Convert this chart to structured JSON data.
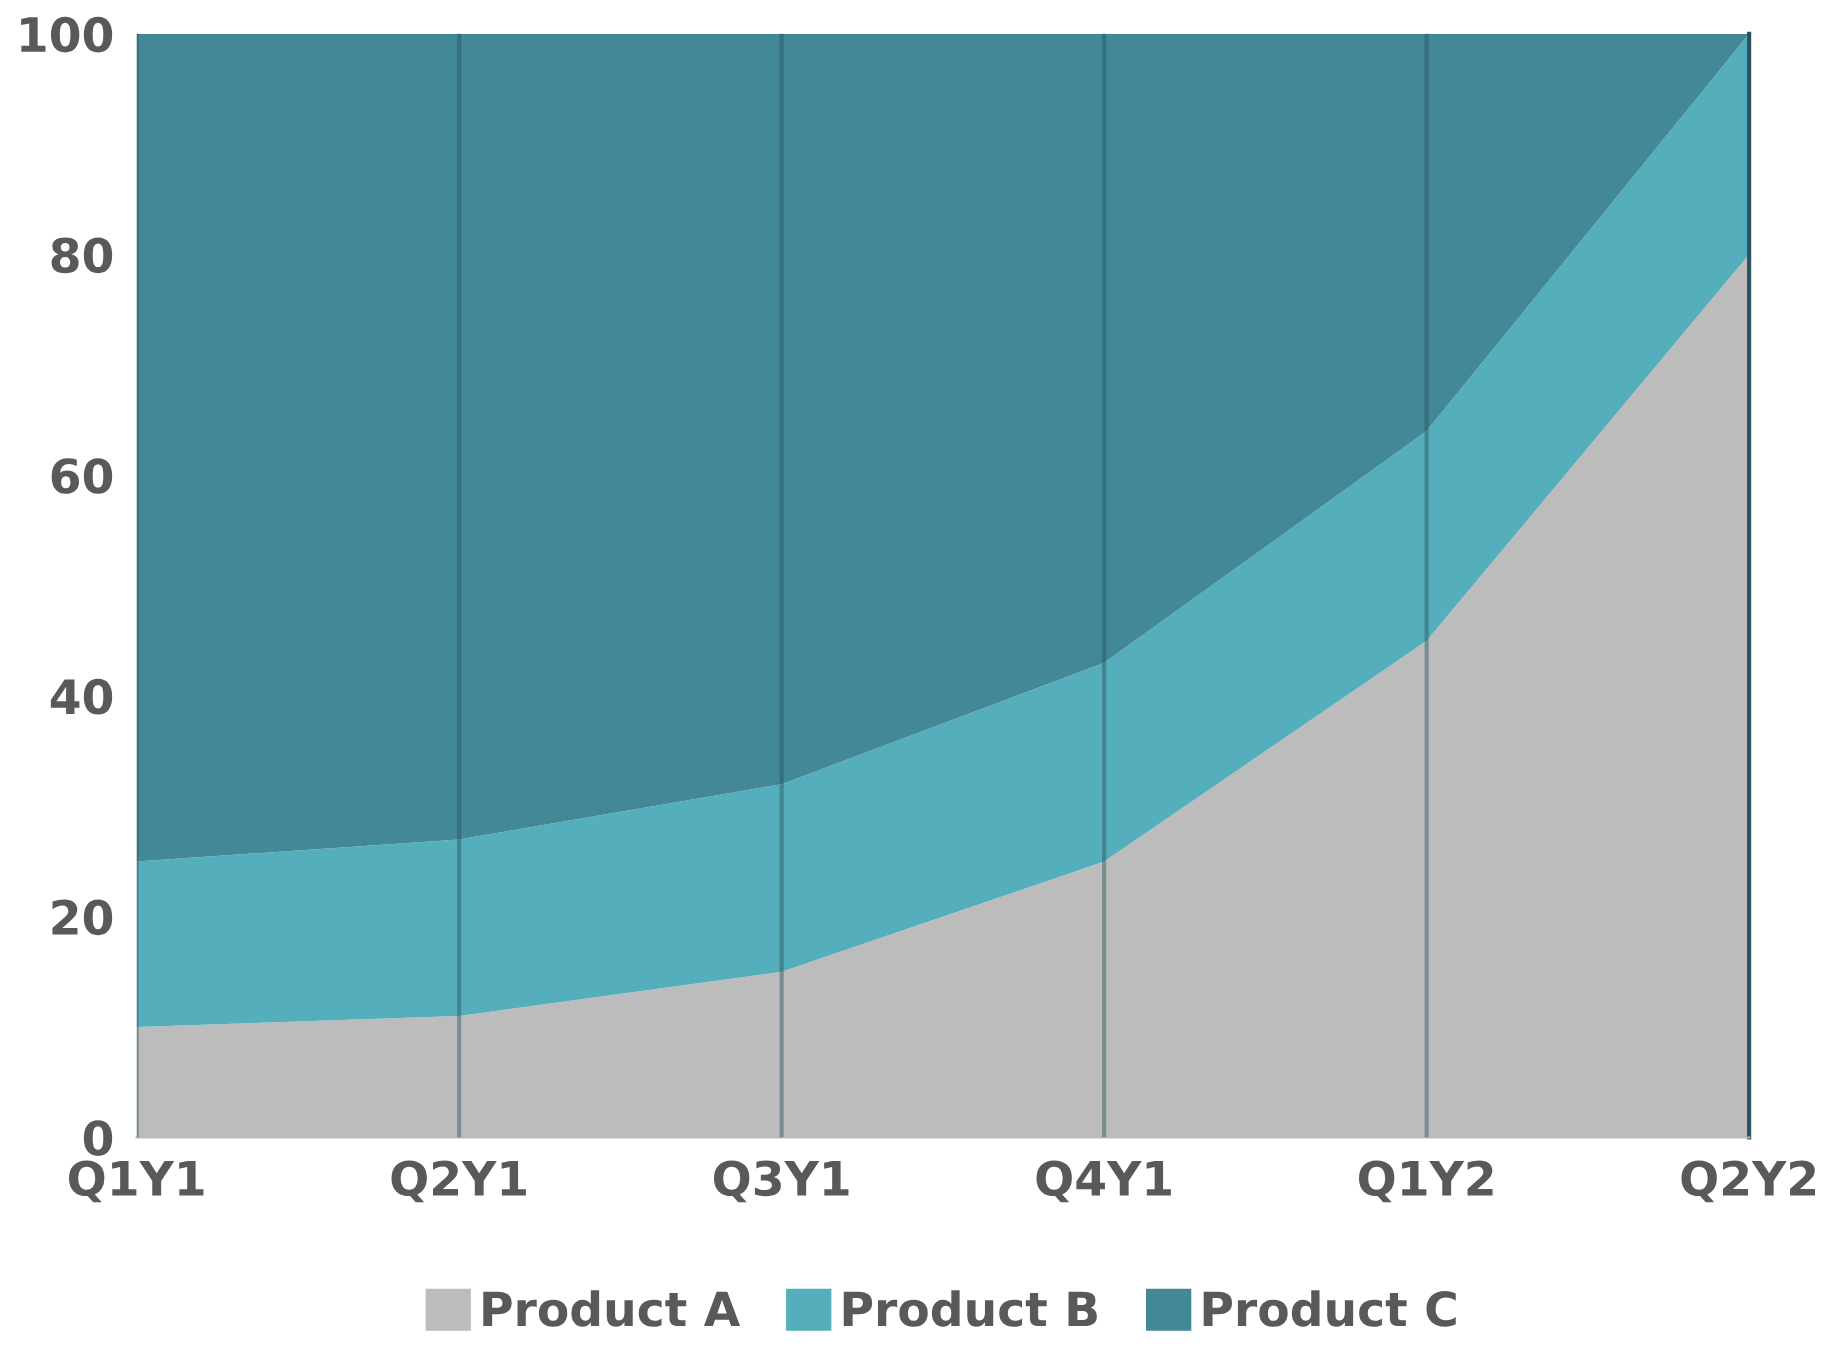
{
  "chart_data": {
    "type": "area",
    "stacked": true,
    "categories": [
      "Q1Y1",
      "Q2Y1",
      "Q3Y1",
      "Q4Y1",
      "Q1Y2",
      "Q2Y2"
    ],
    "series": [
      {
        "name": "Product A",
        "color": "#bcbcbc",
        "values": [
          10,
          11,
          15,
          25,
          45,
          80
        ]
      },
      {
        "name": "Product B",
        "color": "#55aebb",
        "values": [
          15,
          16,
          17,
          18,
          19,
          20
        ]
      },
      {
        "name": "Product C",
        "color": "#428896",
        "values": [
          75,
          73,
          68,
          57,
          36,
          0
        ]
      }
    ],
    "ylim": [
      0,
      100
    ],
    "yticks": [
      0,
      20,
      40,
      60,
      80,
      100
    ],
    "grid": "x",
    "legend": "bottom"
  }
}
